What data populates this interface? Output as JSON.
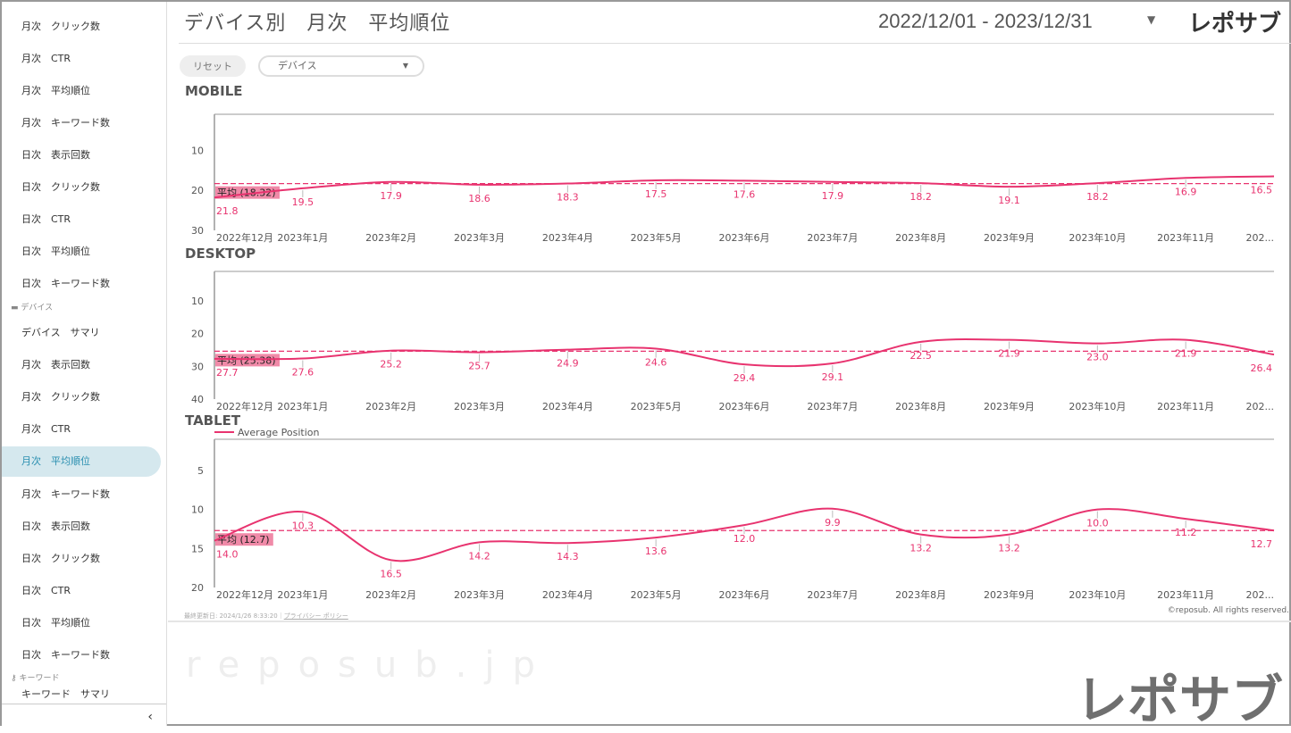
{
  "sidebar": {
    "group1": [
      "月次　クリック数",
      "月次　CTR",
      "月次　平均順位",
      "月次　キーワード数",
      "日次　表示回数",
      "日次　クリック数",
      "日次　CTR",
      "日次　平均順位",
      "日次　キーワード数"
    ],
    "section_device": "デバイス",
    "group2": [
      "デバイス　サマリ",
      "月次　表示回数",
      "月次　クリック数",
      "月次　CTR",
      "月次　平均順位",
      "月次　キーワード数",
      "日次　表示回数",
      "日次　クリック数",
      "日次　CTR",
      "日次　平均順位",
      "日次　キーワード数"
    ],
    "active_index": 4,
    "section_keyword": "キーワード",
    "partial_item": "キーワード　サマリ",
    "collapse": "‹"
  },
  "header": {
    "title": "デバイス別　月次　平均順位",
    "date_range": "2022/12/01 - 2023/12/31",
    "logo": "レポサブ"
  },
  "filters": {
    "reset": "リセット",
    "device_select": "デバイス"
  },
  "watermark": "reposub.jp",
  "colors": {
    "series": "#e8336f",
    "avg_box": "#f08aa8",
    "active_bg": "#d5e8ee",
    "active_text": "#2a8fb0"
  },
  "chart_data": [
    {
      "type": "line",
      "title": "MOBILE",
      "categories": [
        "2022年12月",
        "2023年1月",
        "2023年2月",
        "2023年3月",
        "2023年4月",
        "2023年5月",
        "2023年6月",
        "2023年7月",
        "2023年8月",
        "2023年9月",
        "2023年10月",
        "2023年11月",
        "202..."
      ],
      "values": [
        21.8,
        19.5,
        17.9,
        18.6,
        18.3,
        17.5,
        17.6,
        17.9,
        18.2,
        19.1,
        18.2,
        16.9,
        16.5
      ],
      "value_labels": [
        "21.8",
        "19.5",
        "17.9",
        "18.6",
        "18.3",
        "17.5",
        "17.6",
        "17.9",
        "18.2",
        "19.1",
        "18.2",
        "16.9",
        "16.5"
      ],
      "average": 18.32,
      "average_label": "平均 (18.32)",
      "y_reversed": true,
      "ylim": [
        1,
        30
      ],
      "yticks": [
        "10",
        "20",
        "30"
      ],
      "ytick_values": [
        10,
        20,
        30
      ]
    },
    {
      "type": "line",
      "title": "DESKTOP",
      "categories": [
        "2022年12月",
        "2023年1月",
        "2023年2月",
        "2023年3月",
        "2023年4月",
        "2023年5月",
        "2023年6月",
        "2023年7月",
        "2023年8月",
        "2023年9月",
        "2023年10月",
        "2023年11月",
        "202..."
      ],
      "values": [
        27.7,
        27.6,
        25.2,
        25.7,
        24.9,
        24.6,
        29.4,
        29.1,
        22.5,
        21.9,
        23.0,
        21.9,
        26.4
      ],
      "value_labels": [
        "27.7",
        "27.6",
        "25.2",
        "25.7",
        "24.9",
        "24.6",
        "29.4",
        "29.1",
        "22.5",
        "21.9",
        "23.0",
        "21.9",
        "26.4"
      ],
      "average": 25.38,
      "average_label": "平均 (25.38)",
      "y_reversed": true,
      "ylim": [
        1,
        40
      ],
      "yticks": [
        "10",
        "20",
        "30",
        "40"
      ],
      "ytick_values": [
        10,
        20,
        30,
        40
      ]
    },
    {
      "type": "line",
      "title": "TABLET",
      "legend": "Average Position",
      "legend_position": "top-left",
      "categories": [
        "2022年12月",
        "2023年1月",
        "2023年2月",
        "2023年3月",
        "2023年4月",
        "2023年5月",
        "2023年6月",
        "2023年7月",
        "2023年8月",
        "2023年9月",
        "2023年10月",
        "2023年11月",
        "202..."
      ],
      "values": [
        14.0,
        10.3,
        16.5,
        14.2,
        14.3,
        13.6,
        12.0,
        9.9,
        13.2,
        13.2,
        10.0,
        11.2,
        12.7
      ],
      "value_labels": [
        "14.0",
        "10.3",
        "16.5",
        "14.2",
        "14.3",
        "13.6",
        "12.0",
        "9.9",
        "13.2",
        "13.2",
        "10.0",
        "11.2",
        "12.7"
      ],
      "average": 12.7,
      "average_label": "平均 (12.7)",
      "y_reversed": true,
      "ylim": [
        1,
        20
      ],
      "yticks": [
        "5",
        "10",
        "15",
        "20"
      ],
      "ytick_values": [
        5,
        10,
        15,
        20
      ]
    }
  ],
  "footer": {
    "updated": "最終更新日: 2024/1/26 8:33:20｜",
    "privacy": "プライバシー ポリシー",
    "copyright": "©reposub. All rights reserved."
  }
}
